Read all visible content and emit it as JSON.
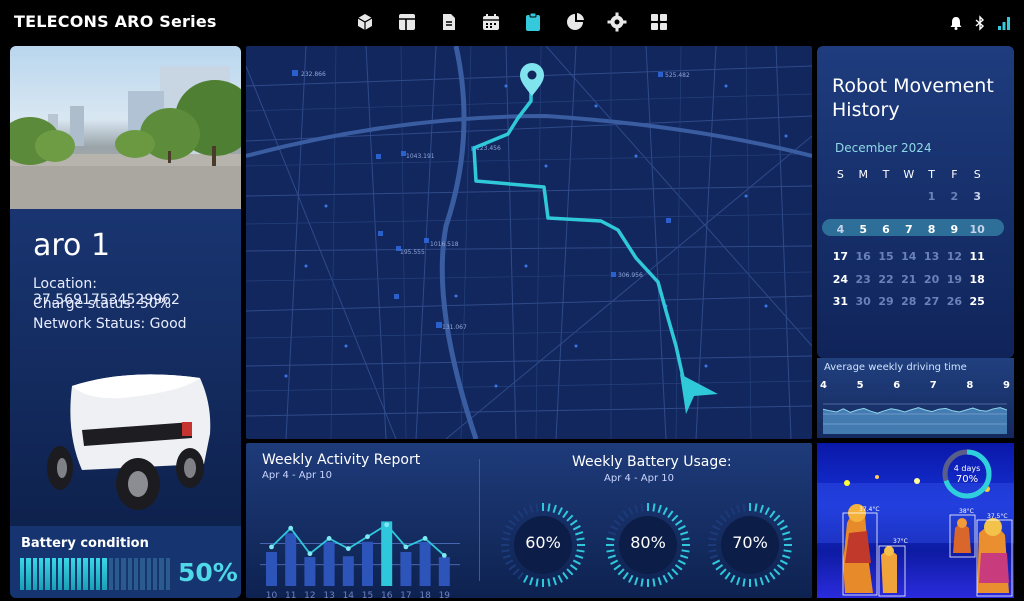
{
  "app": {
    "title": "TELECONS ARO Series"
  },
  "nav": {
    "icons": [
      "cube-icon",
      "layout-icon",
      "document-icon",
      "calendar-icon",
      "clipboard-icon",
      "pie-chart-icon",
      "gear-icon",
      "grid-icon"
    ],
    "active_index": 4
  },
  "status_icons": [
    "bell-icon",
    "bluetooth-icon",
    "signal-icon"
  ],
  "robot": {
    "name": "aro 1",
    "location": "Location: 37.56917534529962",
    "charge": "Charge status: 50%",
    "network": "Network Status: Good"
  },
  "battery": {
    "label": "Battery condition",
    "value": "50%",
    "level": 0.5
  },
  "map": {
    "labels": [
      "232.866",
      "1043.191",
      "1016.518",
      "123.456",
      "131.067",
      "195.555",
      "306.956",
      "525.482"
    ]
  },
  "weekly_activity": {
    "title": "Weekly Activity Report",
    "range": "Apr 4 - Apr 10",
    "chart_data": {
      "type": "bar",
      "categories": [
        "10",
        "11",
        "12",
        "13",
        "14",
        "15",
        "16",
        "17",
        "18",
        "19"
      ],
      "values": [
        40,
        62,
        34,
        52,
        35,
        52,
        76,
        40,
        52,
        34
      ],
      "line": [
        46,
        68,
        38,
        56,
        44,
        58,
        72,
        46,
        56,
        36
      ],
      "highlight_index": 6,
      "ylim": [
        0,
        100
      ]
    }
  },
  "battery_usage": {
    "title": "Weekly Battery Usage:",
    "range": "Apr 4 - Apr 10",
    "gauges": [
      {
        "label": "60%",
        "value": 0.6
      },
      {
        "label": "80%",
        "value": 0.8
      },
      {
        "label": "70%",
        "value": 0.7
      }
    ]
  },
  "history": {
    "title": "Robot Movement History",
    "month": "December 2024",
    "weekdays": [
      "S",
      "M",
      "T",
      "W",
      "T",
      "F",
      "S"
    ],
    "weeks": [
      [
        "",
        "",
        "",
        "",
        "1",
        "2",
        "3"
      ],
      [
        "4",
        "5",
        "6",
        "7",
        "8",
        "9",
        "10"
      ],
      [
        "17",
        "16",
        "15",
        "14",
        "13",
        "12",
        "11"
      ],
      [
        "24",
        "23",
        "22",
        "21",
        "20",
        "19",
        "18"
      ],
      [
        "31",
        "30",
        "29",
        "28",
        "27",
        "26",
        "25"
      ]
    ]
  },
  "driving": {
    "title": "Average weekly driving time",
    "ticks": [
      "4",
      "5",
      "6",
      "7",
      "8",
      "9"
    ],
    "chart_data": {
      "type": "area",
      "values": [
        62,
        58,
        55,
        63,
        54,
        60,
        64,
        57,
        52,
        58,
        63,
        60,
        55,
        61,
        66,
        60,
        56,
        62,
        64,
        58,
        55,
        60,
        65,
        59,
        57,
        63,
        66,
        60
      ],
      "ylim": [
        0,
        100
      ]
    }
  },
  "thermal": {
    "ring_days": "4 days",
    "ring_value": "70%",
    "ring_level": 0.7,
    "temps": [
      "37.4°C",
      "37°C",
      "38°C",
      "37.5°C"
    ]
  }
}
